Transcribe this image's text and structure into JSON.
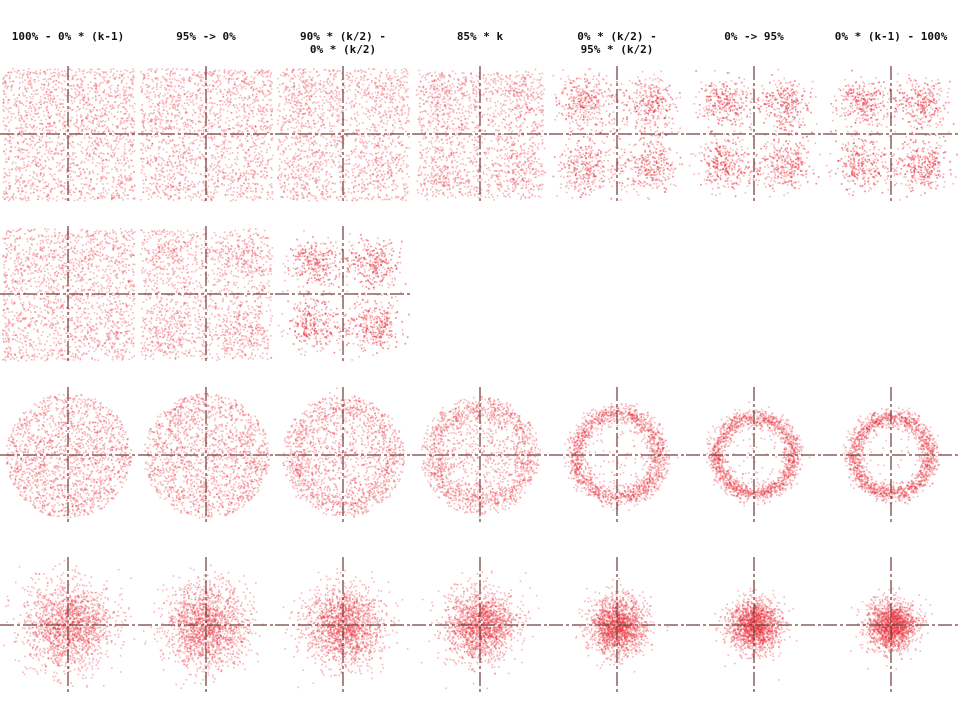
{
  "chart_data": {
    "type": "scatter",
    "description_free": true,
    "columns": [
      "100% - 0% * (k-1)",
      "95% -> 0%",
      "90% * (k/2) -\n0% * (k/2)",
      "85% * k",
      "0% * (k/2) -\n95% * (k/2)",
      "0% -> 95%",
      "0% * (k-1) - 100%"
    ],
    "rows": [
      {
        "shape": "square",
        "ring_strength": [
          0.0,
          0.12,
          0.25,
          0.35,
          0.8,
          0.9,
          0.95
        ],
        "extent": [
          1.0,
          1.0,
          1.0,
          0.95,
          0.85,
          0.8,
          0.8
        ]
      },
      {
        "shape": "square",
        "ring_strength": [
          0.0,
          0.45,
          0.95
        ],
        "extent": [
          1.0,
          0.98,
          0.8
        ]
      },
      {
        "shape": "disk",
        "ring_strength": [
          0.0,
          0.1,
          0.3,
          0.45,
          0.85,
          0.92,
          0.95
        ],
        "extent": [
          1.0,
          1.0,
          0.98,
          0.95,
          0.85,
          0.78,
          0.78
        ]
      },
      {
        "shape": "gaussian",
        "ring_strength": [
          0.0,
          0.0,
          0.0,
          0.0,
          0.0,
          0.0,
          0.0
        ],
        "extent": [
          1.0,
          0.92,
          0.85,
          0.75,
          0.55,
          0.48,
          0.45
        ]
      }
    ],
    "colors": {
      "point": "#e8323c",
      "axis": "#6b3a36",
      "background": "#ffffff"
    },
    "legend": "none",
    "grid": false
  }
}
